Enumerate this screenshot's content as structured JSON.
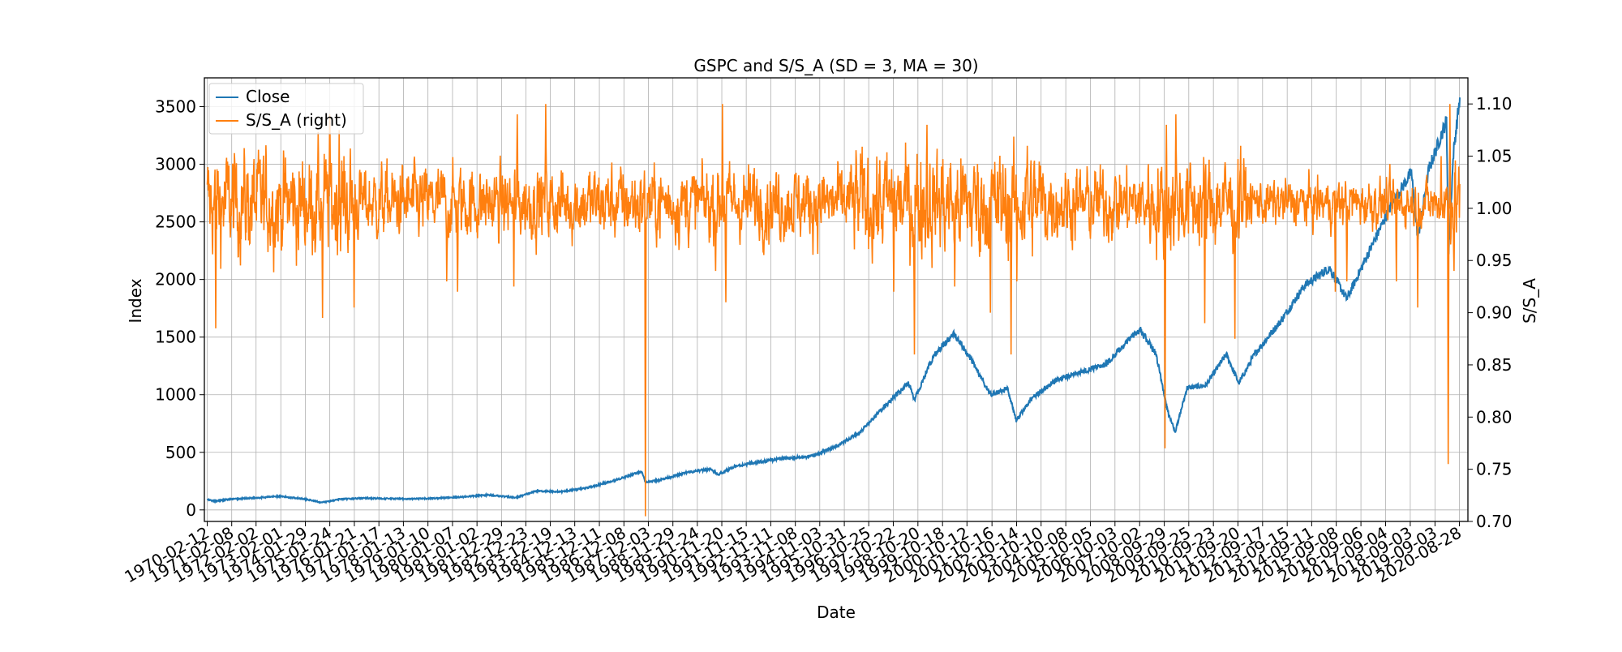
{
  "chart_data": {
    "type": "line",
    "title": "GSPC and S/S_A (SD = 3, MA = 30)",
    "xlabel": "Date",
    "ylabel_left": "Index",
    "ylabel_right": "S/S_A",
    "grid": true,
    "legend_placement": "upper-left",
    "xlim": [
      "1970-01-01",
      "2020-12-31"
    ],
    "ylim_left": [
      -100,
      3750
    ],
    "ylim_right": [
      0.7,
      1.125
    ],
    "yticks_left": [
      0,
      500,
      1000,
      1500,
      2000,
      2500,
      3000,
      3500
    ],
    "yticks_right": [
      0.7,
      0.75,
      0.8,
      0.85,
      0.9,
      0.95,
      1.0,
      1.05,
      1.1
    ],
    "x_tick_labels": [
      "1970-02-12",
      "1971-02-08",
      "1972-02-02",
      "1973-02-01",
      "1974-01-29",
      "1975-01-24",
      "1976-01-21",
      "1977-01-17",
      "1978-01-13",
      "1979-01-10",
      "1980-01-07",
      "1981-01-02",
      "1981-12-29",
      "1982-12-23",
      "1983-12-19",
      "1984-12-13",
      "1985-12-11",
      "1986-12-08",
      "1987-12-03",
      "1988-11-29",
      "1989-11-24",
      "1990-11-20",
      "1991-11-15",
      "1992-11-11",
      "1993-11-08",
      "1994-11-03",
      "1995-10-31",
      "1996-10-25",
      "1997-10-22",
      "1998-10-20",
      "1999-10-18",
      "2000-10-12",
      "2001-10-16",
      "2002-10-14",
      "2003-10-10",
      "2004-10-08",
      "2005-10-05",
      "2006-10-03",
      "2007-10-02",
      "2008-09-29",
      "2009-09-25",
      "2010-09-23",
      "2011-09-20",
      "2012-09-17",
      "2013-09-15",
      "2014-09-11",
      "2015-09-08",
      "2016-09-06",
      "2017-09-04",
      "2018-09-03",
      "2019-09-03",
      "2020-08-28"
    ],
    "series": [
      {
        "name": "Close",
        "color": "#1f77b4",
        "axis": "left",
        "x": [
          "1970-02-12",
          "1970-06-01",
          "1971-01-01",
          "1972-01-01",
          "1973-01-01",
          "1974-01-01",
          "1974-10-01",
          "1975-06-01",
          "1976-06-01",
          "1977-06-01",
          "1978-06-01",
          "1979-06-01",
          "1980-06-01",
          "1981-06-01",
          "1982-08-01",
          "1983-06-01",
          "1984-06-01",
          "1985-06-01",
          "1986-06-01",
          "1987-08-25",
          "1987-10-20",
          "1988-06-01",
          "1989-06-01",
          "1990-06-01",
          "1990-10-01",
          "1991-06-01",
          "1992-06-01",
          "1993-06-01",
          "1994-06-01",
          "1995-06-01",
          "1996-06-01",
          "1997-06-01",
          "1998-06-01",
          "1998-09-01",
          "1999-06-01",
          "2000-03-24",
          "2000-12-01",
          "2001-09-21",
          "2002-06-01",
          "2002-10-09",
          "2003-06-01",
          "2004-06-01",
          "2005-06-01",
          "2006-06-01",
          "2007-06-01",
          "2007-10-09",
          "2008-06-01",
          "2008-11-20",
          "2009-03-09",
          "2009-09-01",
          "2010-06-01",
          "2011-04-01",
          "2011-10-03",
          "2012-06-01",
          "2013-06-01",
          "2014-06-01",
          "2015-06-01",
          "2016-02-11",
          "2016-12-01",
          "2017-12-01",
          "2018-09-20",
          "2018-12-24",
          "2019-06-01",
          "2020-02-19",
          "2020-03-23",
          "2020-06-01",
          "2020-09-02"
        ],
        "values": [
          89,
          76,
          92,
          104,
          118,
          97,
          64,
          92,
          102,
          98,
          95,
          102,
          113,
          130,
          107,
          165,
          158,
          190,
          245,
          336,
          236,
          262,
          320,
          355,
          306,
          380,
          415,
          450,
          458,
          545,
          665,
          890,
          1100,
          960,
          1330,
          1527,
          1320,
          1000,
          1050,
          776,
          975,
          1130,
          1200,
          1270,
          1500,
          1565,
          1350,
          850,
          676,
          1060,
          1080,
          1350,
          1100,
          1360,
          1630,
          1950,
          2100,
          1830,
          2200,
          2650,
          2930,
          2350,
          2950,
          3380,
          2237,
          3100,
          3580
        ]
      },
      {
        "name": "S/S_A (right)",
        "color": "#ff7f0e",
        "axis": "right",
        "x": [],
        "values": []
      }
    ]
  }
}
